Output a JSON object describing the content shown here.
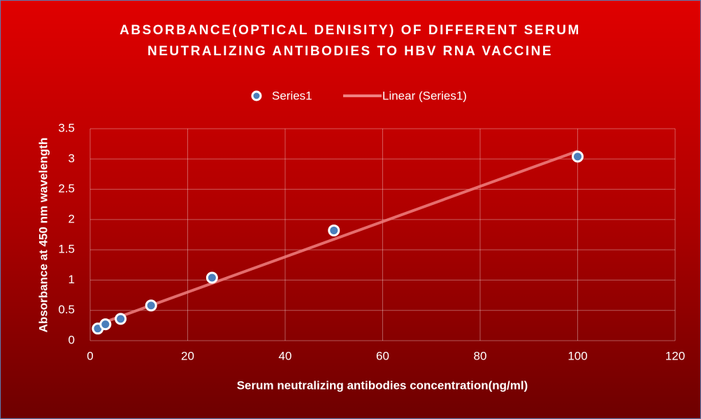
{
  "chart_data": {
    "type": "scatter",
    "title": "ABSORBANCE(OPTICAL DENISITY) OF DIFFERENT SERUM NEUTRALIZING ANTIBODIES TO HBV RNA VACCINE",
    "x_label": "Serum neutralizing antibodies concentration(ng/ml)",
    "y_label": "Absorbance at 450 nm wavelength",
    "series": [
      {
        "name": "Series1",
        "color": "#4a7ebb",
        "x": [
          1.56,
          3.13,
          6.25,
          12.5,
          25,
          50,
          100
        ],
        "values": [
          0.2,
          0.27,
          0.36,
          0.58,
          1.04,
          1.82,
          3.04
        ]
      }
    ],
    "trendline": {
      "name": "Linear (Series1)",
      "color": "#f08080",
      "type": "linear"
    },
    "xlim": [
      0,
      120
    ],
    "xticks": [
      0,
      20,
      40,
      60,
      80,
      100,
      120
    ],
    "ylim": [
      0,
      3.5
    ],
    "yticks": [
      0,
      0.5,
      1,
      1.5,
      2,
      2.5,
      3,
      3.5
    ],
    "grid": true,
    "legend": "top"
  }
}
